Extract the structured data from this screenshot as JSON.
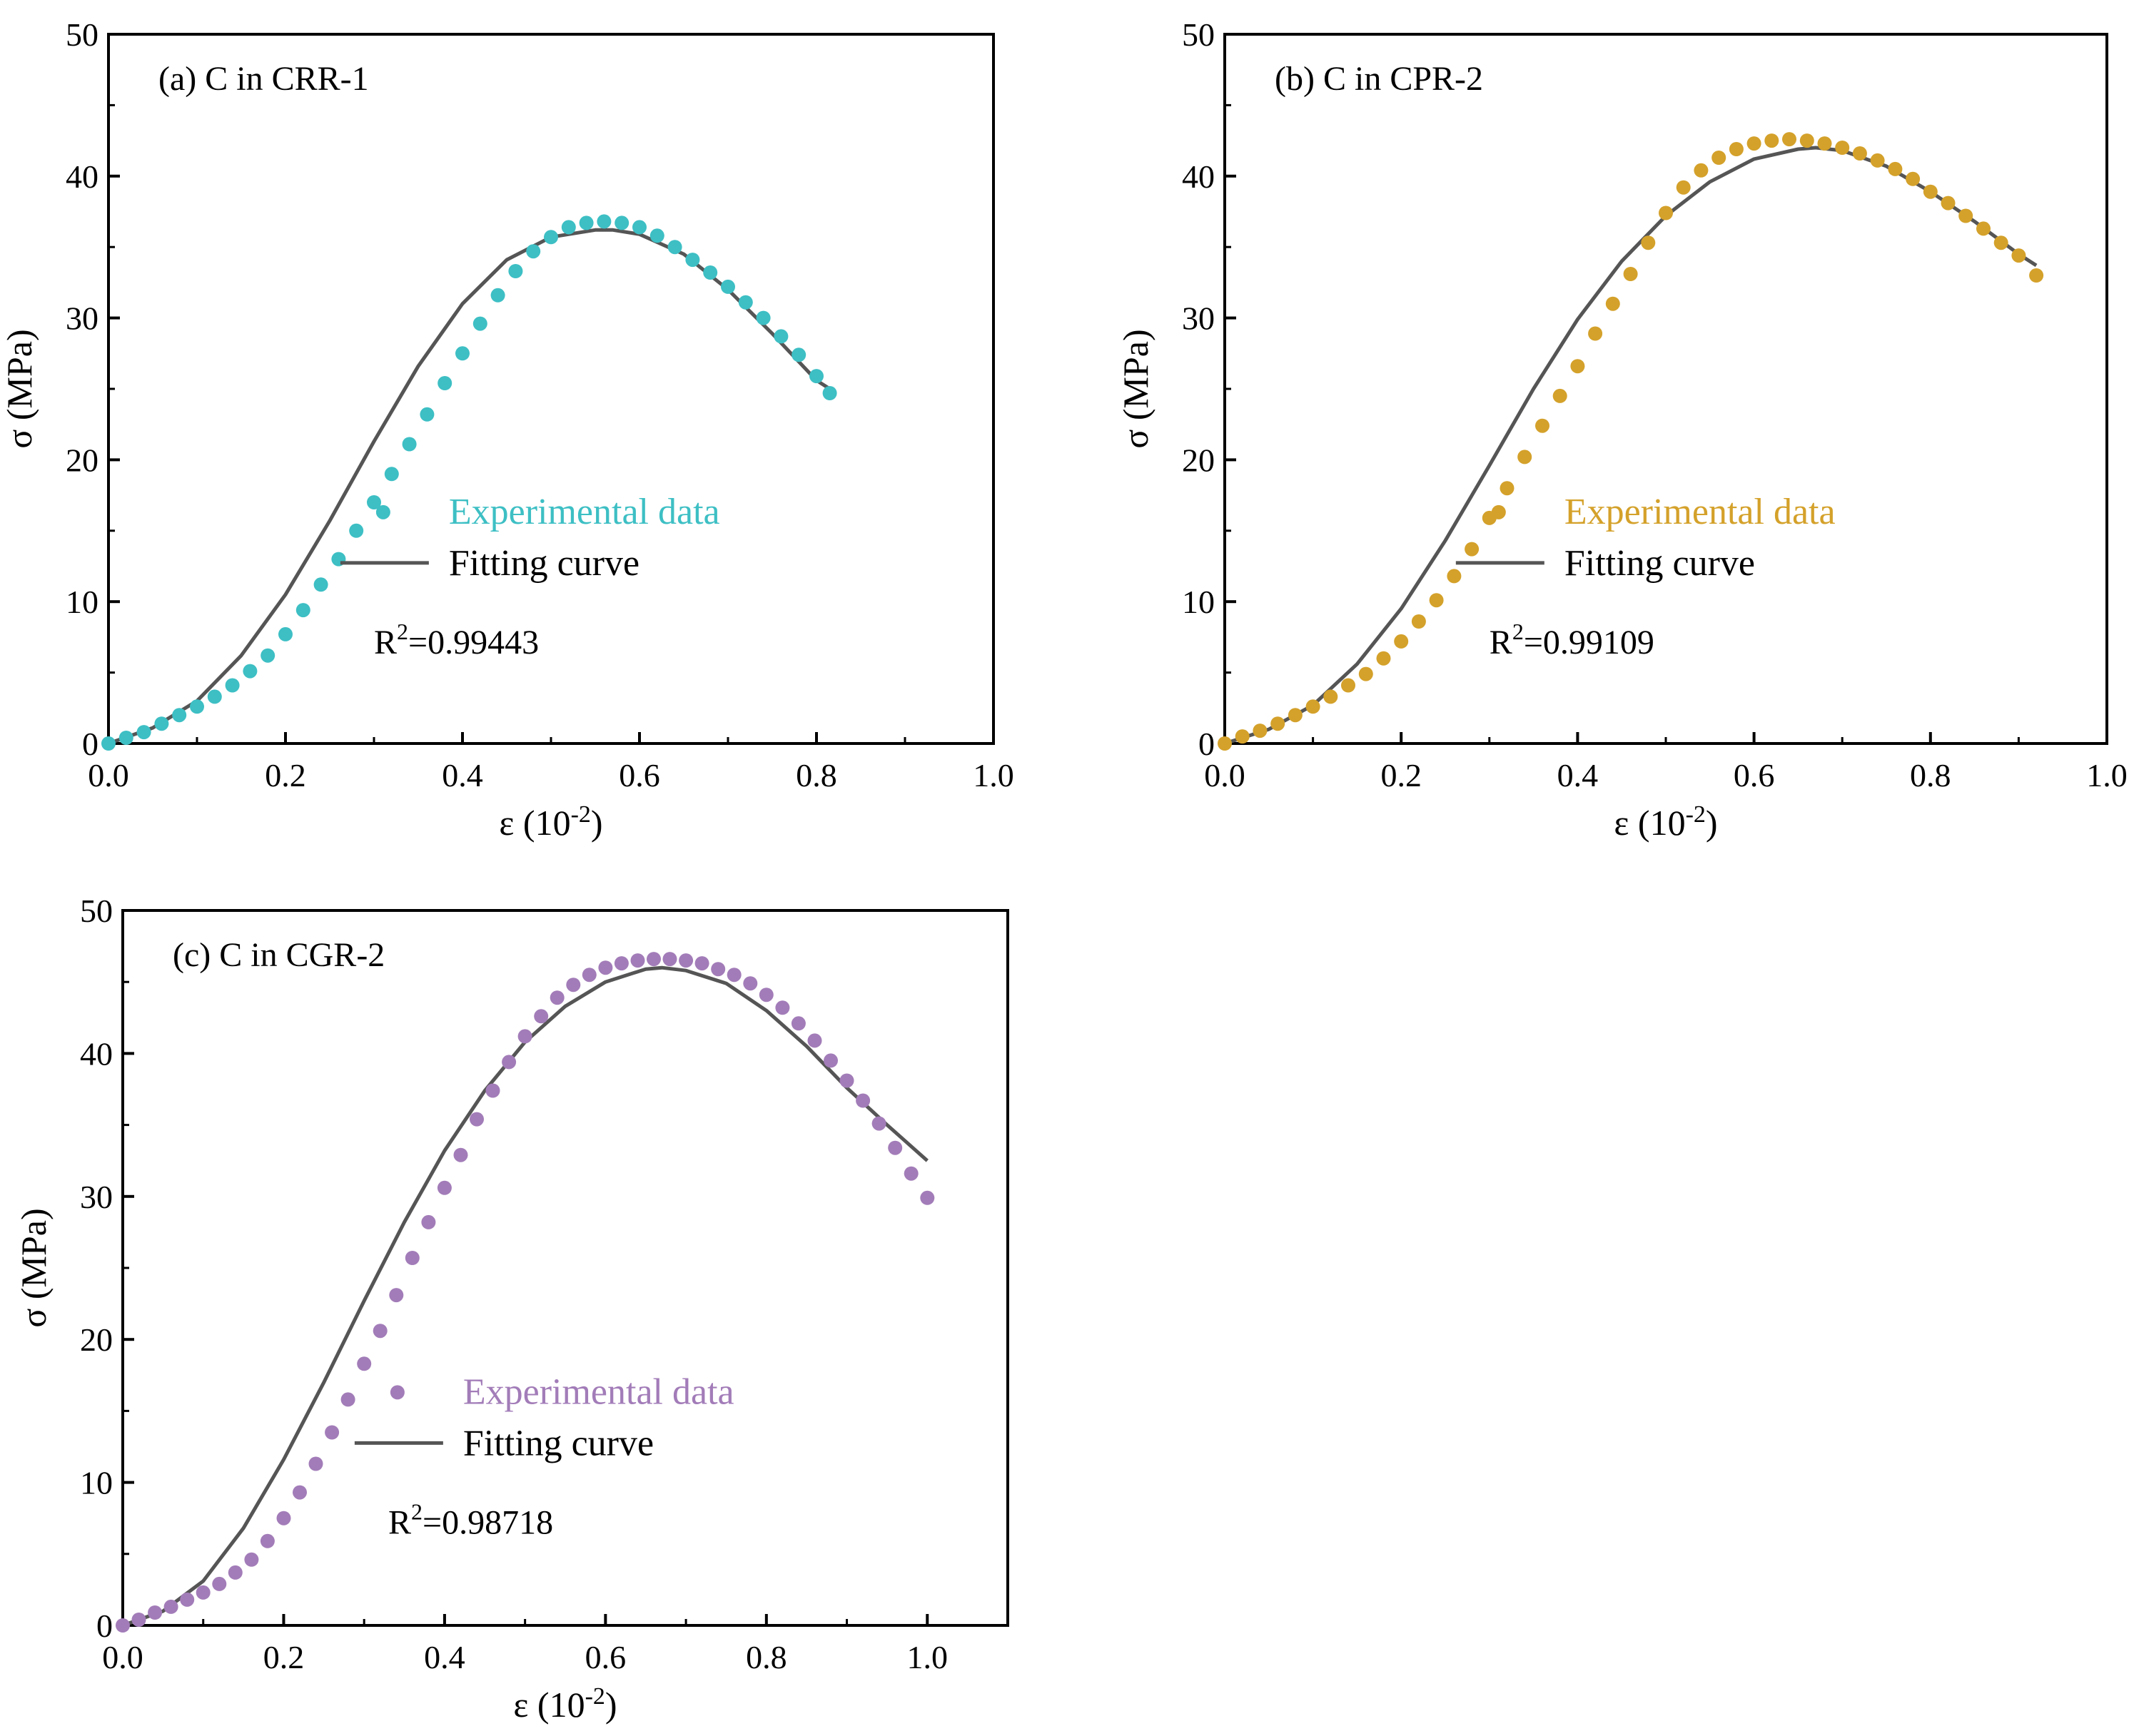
{
  "figure": {
    "fit_color": "#555555",
    "axis_color": "#000000"
  },
  "chart_data": [
    {
      "type": "scatter",
      "panel_label": "(a) C in CRR-1",
      "xlabel": "ε (10",
      "xlabel_exp": "-2",
      "xlabel_close": ")",
      "ylabel": "σ (MPa)",
      "xlim": [
        0,
        1.0
      ],
      "ylim": [
        0,
        50
      ],
      "x_ticks": [
        "0.0",
        "0.2",
        "0.4",
        "0.6",
        "0.8",
        "1.0"
      ],
      "y_ticks": [
        "0",
        "10",
        "20",
        "30",
        "40",
        "50"
      ],
      "color": "#3dbfc4",
      "legend": {
        "experimental": "Experimental data",
        "fit": "Fitting curve",
        "position": "center-right"
      },
      "r2": {
        "prefix": "R",
        "exp": "2",
        "value": "=0.99443"
      },
      "experimental": {
        "x": [
          0.0,
          0.02,
          0.04,
          0.06,
          0.08,
          0.1,
          0.12,
          0.14,
          0.16,
          0.18,
          0.2,
          0.22,
          0.24,
          0.26,
          0.28,
          0.3,
          0.32,
          0.34,
          0.36,
          0.38,
          0.4,
          0.42,
          0.44,
          0.46,
          0.48,
          0.5,
          0.52,
          0.54,
          0.56,
          0.58,
          0.6,
          0.62,
          0.64,
          0.66,
          0.68,
          0.7,
          0.72,
          0.74,
          0.76,
          0.78,
          0.8,
          0.815
        ],
        "y": [
          0.0,
          0.4,
          0.8,
          1.4,
          2.0,
          2.6,
          3.3,
          4.1,
          5.1,
          6.2,
          7.7,
          9.4,
          11.2,
          13.0,
          15.0,
          17.0,
          19.0,
          21.1,
          23.2,
          25.4,
          27.5,
          29.6,
          31.6,
          33.3,
          34.7,
          35.7,
          36.4,
          36.7,
          36.8,
          36.7,
          36.4,
          35.8,
          35.0,
          34.1,
          33.2,
          32.2,
          31.1,
          30.0,
          28.7,
          27.4,
          25.9,
          24.7
        ]
      },
      "fit": {
        "x": [
          0.0,
          0.05,
          0.1,
          0.15,
          0.2,
          0.25,
          0.3,
          0.35,
          0.4,
          0.45,
          0.5,
          0.55,
          0.57,
          0.6,
          0.65,
          0.7,
          0.75,
          0.8,
          0.815
        ],
        "y": [
          0.0,
          1.1,
          3.0,
          6.2,
          10.5,
          15.7,
          21.3,
          26.6,
          31.0,
          34.1,
          35.7,
          36.2,
          36.2,
          35.9,
          34.5,
          32.0,
          28.9,
          25.6,
          25.0
        ]
      }
    },
    {
      "type": "scatter",
      "panel_label": "(b) C in CPR-2",
      "xlabel": "ε (10",
      "xlabel_exp": "-2",
      "xlabel_close": ")",
      "ylabel": "σ (MPa)",
      "xlim": [
        0,
        1.0
      ],
      "ylim": [
        0,
        50
      ],
      "x_ticks": [
        "0.0",
        "0.2",
        "0.4",
        "0.6",
        "0.8",
        "1.0"
      ],
      "y_ticks": [
        "0",
        "10",
        "20",
        "30",
        "40",
        "50"
      ],
      "color": "#d4a12a",
      "legend": {
        "experimental": "Experimental data",
        "fit": "Fitting curve",
        "position": "center-right"
      },
      "r2": {
        "prefix": "R",
        "exp": "2",
        "value": "=0.99109"
      },
      "experimental": {
        "x": [
          0.0,
          0.02,
          0.04,
          0.06,
          0.08,
          0.1,
          0.12,
          0.14,
          0.16,
          0.18,
          0.2,
          0.22,
          0.24,
          0.26,
          0.28,
          0.3,
          0.32,
          0.34,
          0.36,
          0.38,
          0.4,
          0.42,
          0.44,
          0.46,
          0.48,
          0.5,
          0.52,
          0.54,
          0.56,
          0.58,
          0.6,
          0.62,
          0.64,
          0.66,
          0.68,
          0.7,
          0.72,
          0.74,
          0.76,
          0.78,
          0.8,
          0.82,
          0.84,
          0.86,
          0.88,
          0.9,
          0.92
        ],
        "y": [
          0.0,
          0.5,
          0.9,
          1.4,
          2.0,
          2.6,
          3.3,
          4.1,
          4.9,
          6.0,
          7.2,
          8.6,
          10.1,
          11.8,
          13.7,
          15.9,
          18.0,
          20.2,
          22.4,
          24.5,
          26.6,
          28.9,
          31.0,
          33.1,
          35.3,
          37.4,
          39.2,
          40.4,
          41.3,
          41.9,
          42.3,
          42.5,
          42.6,
          42.5,
          42.3,
          42.0,
          41.6,
          41.1,
          40.5,
          39.8,
          38.9,
          38.1,
          37.2,
          36.3,
          35.3,
          34.4,
          33.0
        ]
      },
      "fit": {
        "x": [
          0.0,
          0.05,
          0.1,
          0.15,
          0.2,
          0.25,
          0.3,
          0.35,
          0.4,
          0.45,
          0.5,
          0.55,
          0.6,
          0.65,
          0.67,
          0.7,
          0.75,
          0.8,
          0.85,
          0.9,
          0.92
        ],
        "y": [
          0.0,
          1.0,
          2.7,
          5.6,
          9.5,
          14.3,
          19.6,
          25.0,
          29.9,
          34.0,
          37.2,
          39.6,
          41.2,
          41.9,
          42.0,
          41.8,
          40.7,
          38.9,
          36.8,
          34.5,
          33.7
        ]
      }
    },
    {
      "type": "scatter",
      "panel_label": "(c) C in CGR-2",
      "xlabel": "ε (10",
      "xlabel_exp": "-2",
      "xlabel_close": ")",
      "ylabel": "σ (MPa)",
      "xlim": [
        0,
        1.1
      ],
      "ylim": [
        0,
        50
      ],
      "x_ticks": [
        "0.0",
        "0.2",
        "0.4",
        "0.6",
        "0.8",
        "1.0"
      ],
      "y_ticks": [
        "0",
        "10",
        "20",
        "30",
        "40",
        "50"
      ],
      "color": "#a27cb8",
      "legend": {
        "experimental": "Experimental data",
        "fit": "Fitting curve",
        "position": "center-right"
      },
      "r2": {
        "prefix": "R",
        "exp": "2",
        "value": "=0.98718"
      },
      "experimental": {
        "x": [
          0.0,
          0.02,
          0.04,
          0.06,
          0.08,
          0.1,
          0.12,
          0.14,
          0.16,
          0.18,
          0.2,
          0.22,
          0.24,
          0.26,
          0.28,
          0.3,
          0.32,
          0.34,
          0.36,
          0.38,
          0.4,
          0.42,
          0.44,
          0.46,
          0.48,
          0.5,
          0.52,
          0.54,
          0.56,
          0.58,
          0.6,
          0.62,
          0.64,
          0.66,
          0.68,
          0.7,
          0.72,
          0.74,
          0.76,
          0.78,
          0.8,
          0.82,
          0.84,
          0.86,
          0.88,
          0.9,
          0.92,
          0.94,
          0.96,
          0.98,
          1.0
        ],
        "y": [
          0.0,
          0.4,
          0.9,
          1.3,
          1.8,
          2.3,
          2.9,
          3.7,
          4.6,
          5.9,
          7.5,
          9.3,
          11.3,
          13.5,
          15.8,
          18.3,
          20.6,
          23.1,
          25.7,
          28.2,
          30.6,
          32.9,
          35.4,
          37.4,
          39.4,
          41.2,
          42.6,
          43.9,
          44.8,
          45.5,
          46.0,
          46.3,
          46.5,
          46.6,
          46.6,
          46.5,
          46.3,
          45.9,
          45.5,
          44.9,
          44.1,
          43.2,
          42.1,
          40.9,
          39.5,
          38.1,
          36.7,
          35.1,
          33.4,
          31.6,
          29.9
        ]
      },
      "fit": {
        "x": [
          0.0,
          0.05,
          0.1,
          0.15,
          0.2,
          0.25,
          0.3,
          0.35,
          0.4,
          0.45,
          0.5,
          0.55,
          0.6,
          0.65,
          0.67,
          0.7,
          0.75,
          0.8,
          0.85,
          0.9,
          0.95,
          1.0
        ],
        "y": [
          0.0,
          1.0,
          3.1,
          6.8,
          11.6,
          17.0,
          22.7,
          28.2,
          33.2,
          37.4,
          40.8,
          43.3,
          45.0,
          45.9,
          46.0,
          45.8,
          44.9,
          43.0,
          40.5,
          37.6,
          35.0,
          32.5
        ]
      }
    }
  ]
}
